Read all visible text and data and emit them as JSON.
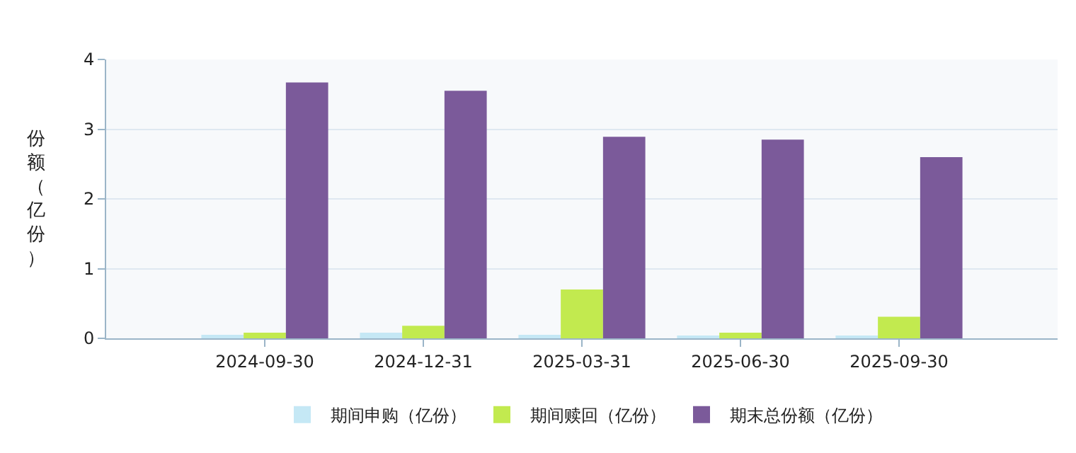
{
  "chart_data": {
    "type": "bar",
    "ylabel": "份额（亿份）",
    "categories": [
      "2024-09-30",
      "2024-12-31",
      "2025-03-31",
      "2025-06-30",
      "2025-09-30"
    ],
    "series": [
      {
        "name": "期间申购（亿份）",
        "color": "#c5e8f5",
        "values": [
          0.05,
          0.08,
          0.05,
          0.03,
          0.03
        ]
      },
      {
        "name": "期间赎回（亿份）",
        "color": "#c2ea4f",
        "values": [
          0.08,
          0.18,
          0.7,
          0.08,
          0.31
        ]
      },
      {
        "name": "期末总份额（亿份）",
        "color": "#7b5a9a",
        "values": [
          3.67,
          3.55,
          2.89,
          2.85,
          2.6
        ]
      }
    ],
    "ylim": [
      0,
      4
    ],
    "yticks": [
      0,
      1,
      2,
      3,
      4
    ],
    "grid": "y",
    "legend": "bottom"
  }
}
